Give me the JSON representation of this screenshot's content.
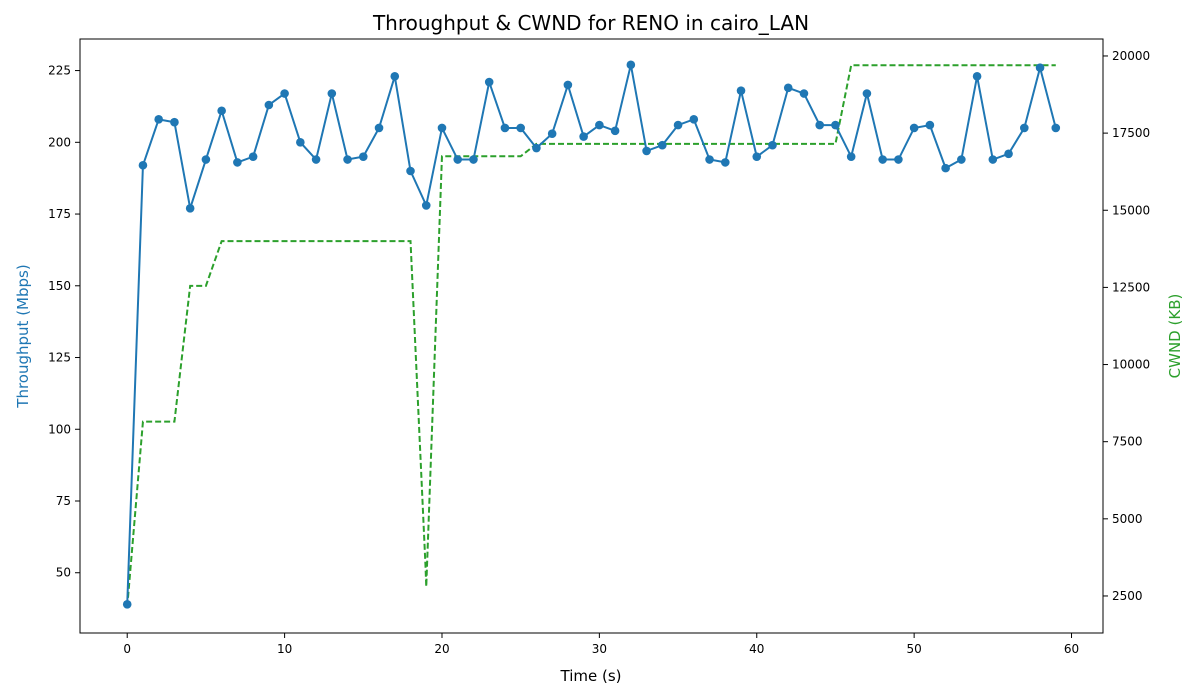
{
  "chart_data": {
    "type": "line",
    "title": "Throughput & CWND for RENO in cairo_LAN",
    "xlabel": "Time (s)",
    "ylabel_left": "Throughput (Mbps)",
    "ylabel_right": "CWND (KB)",
    "xlim": [
      -3,
      62
    ],
    "ylim_left": [
      29,
      236
    ],
    "ylim_right": [
      1300,
      20550
    ],
    "x_ticks": [
      0,
      10,
      20,
      30,
      40,
      50,
      60
    ],
    "y_left_ticks": [
      50,
      75,
      100,
      125,
      150,
      175,
      200,
      225
    ],
    "y_right_ticks": [
      2500,
      5000,
      7500,
      10000,
      12500,
      15000,
      17500,
      20000
    ],
    "grid": false,
    "colors": {
      "throughput": "#1f77b4",
      "cwnd": "#2ca02c"
    },
    "series": [
      {
        "axis": "left",
        "style": "solid-markers",
        "x": [
          0,
          1,
          2,
          3,
          4,
          5,
          6,
          7,
          8,
          9,
          10,
          11,
          12,
          13,
          14,
          15,
          16,
          17,
          18,
          19,
          20,
          21,
          22,
          23,
          24,
          25,
          26,
          27,
          28,
          29,
          30,
          31,
          32,
          33,
          34,
          35,
          36,
          37,
          38,
          39,
          40,
          41,
          42,
          43,
          44,
          45,
          46,
          47,
          48,
          49,
          50,
          51,
          52,
          53,
          54,
          55,
          56,
          57,
          58,
          59
        ],
        "values": [
          39,
          192,
          208,
          207,
          177,
          194,
          211,
          193,
          195,
          213,
          217,
          200,
          194,
          217,
          194,
          195,
          205,
          223,
          190,
          178,
          205,
          194,
          194,
          221,
          205,
          205,
          198,
          203,
          220,
          202,
          206,
          204,
          227,
          197,
          199,
          206,
          208,
          194,
          193,
          218,
          195,
          199,
          219,
          217,
          206,
          206,
          195,
          217,
          194,
          194,
          205,
          206,
          191,
          194,
          223,
          194,
          196,
          205,
          226,
          205
        ]
      },
      {
        "axis": "right",
        "style": "dashed",
        "x": [
          0,
          1,
          2,
          3,
          4,
          5,
          6,
          7,
          8,
          9,
          10,
          11,
          12,
          13,
          14,
          15,
          16,
          17,
          18,
          18.95,
          19,
          20,
          21,
          22,
          23,
          24,
          25,
          26,
          27,
          28,
          29,
          30,
          31,
          32,
          33,
          34,
          35,
          36,
          37,
          38,
          39,
          40,
          41,
          42,
          43,
          44,
          45,
          46,
          47,
          48,
          49,
          50,
          51,
          52,
          53,
          54,
          55,
          56,
          57,
          58,
          59
        ],
        "values": [
          2150,
          8150,
          8150,
          8150,
          12550,
          12550,
          14000,
          14000,
          14000,
          14000,
          14000,
          14000,
          14000,
          14000,
          14000,
          14000,
          14000,
          14000,
          14000,
          3500,
          2800,
          16750,
          16750,
          16750,
          16750,
          16750,
          16750,
          17150,
          17150,
          17150,
          17150,
          17150,
          17150,
          17150,
          17150,
          17150,
          17150,
          17150,
          17150,
          17150,
          17150,
          17150,
          17150,
          17150,
          17150,
          17150,
          17150,
          19700,
          19700,
          19700,
          19700,
          19700,
          19700,
          19700,
          19700,
          19700,
          19700,
          19700,
          19700,
          19700,
          19700
        ]
      }
    ]
  }
}
